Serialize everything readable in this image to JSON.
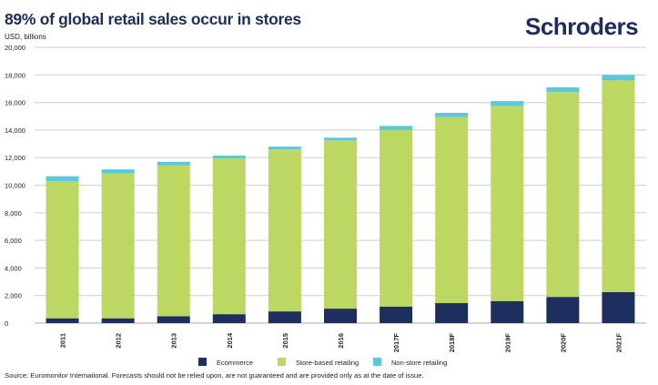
{
  "chart_data": {
    "type": "bar",
    "stacked": true,
    "title": "89% of global retail sales occur in stores",
    "ylabel": "USD, billions",
    "xlabel": "",
    "ylim": [
      0,
      20000
    ],
    "yticks": [
      0,
      2000,
      4000,
      6000,
      8000,
      10000,
      12000,
      14000,
      16000,
      18000,
      20000
    ],
    "ytick_labels": [
      "0",
      "2,000",
      "4,000",
      "6,000",
      "8,000",
      "10,000",
      "12,000",
      "14,000",
      "16,000",
      "18,000",
      "20,000"
    ],
    "grid": true,
    "legend_position": "bottom",
    "categories": [
      "2011",
      "2012",
      "2013",
      "2014",
      "2015",
      "2016",
      "2017F",
      "2018F",
      "2019F",
      "2020F",
      "2021F"
    ],
    "series": [
      {
        "name": "Ecommerce",
        "color": "#1d2f5e",
        "values": [
          350,
          350,
          500,
          650,
          850,
          1050,
          1200,
          1450,
          1600,
          1900,
          2250
        ]
      },
      {
        "name": "Store-based retailing",
        "color": "#bdd862",
        "values": [
          9950,
          10500,
          10950,
          11300,
          11750,
          12200,
          12800,
          13500,
          14150,
          14850,
          15350
        ]
      },
      {
        "name": "Non-store retailing",
        "color": "#5bc8dc",
        "values": [
          350,
          300,
          250,
          200,
          200,
          200,
          300,
          300,
          350,
          350,
          400
        ]
      }
    ],
    "source": "Source: Euromonitor International. Forecasts should not be relied upon, are not guaranteed and are provided only as at the date of issue."
  },
  "brand": {
    "logo_text": "Schroders"
  }
}
